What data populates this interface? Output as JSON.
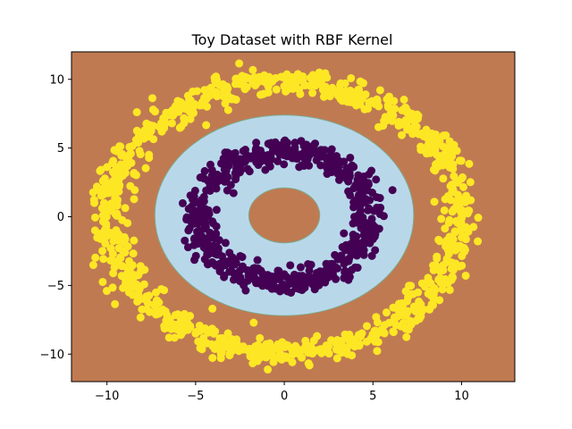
{
  "chart_data": {
    "type": "scatter",
    "title": "Toy Dataset with RBF Kernel",
    "xlabel": "",
    "ylabel": "",
    "xlim": [
      -12,
      13
    ],
    "ylim": [
      -12,
      12
    ],
    "x_ticks": [
      -10,
      -5,
      0,
      5,
      10
    ],
    "y_ticks": [
      -10,
      -5,
      0,
      5,
      10
    ],
    "x_tick_labels": [
      "−10",
      "−5",
      "0",
      "5",
      "10"
    ],
    "y_tick_labels": [
      "−10",
      "−5",
      "0",
      "5",
      "10"
    ],
    "grid": false,
    "colors": {
      "background_region": "#c07a52",
      "inner_class_region": "#b8d8ea",
      "outer_points": "#fde725",
      "inner_points": "#440154"
    },
    "decision_regions": [
      {
        "class": "inner",
        "color": "#b8d8ea",
        "center": [
          0.0,
          0.1
        ],
        "outer_radius": 7.3,
        "inner_radius": 2.0
      }
    ],
    "series": [
      {
        "class": "outer",
        "color": "#fde725",
        "center": [
          0,
          0
        ],
        "radius_mean": 9.9,
        "radius_spread": 0.9,
        "count": 1000
      },
      {
        "class": "inner",
        "color": "#440154",
        "center": [
          0,
          0
        ],
        "radius_mean": 4.8,
        "radius_spread": 0.85,
        "count": 650
      }
    ]
  }
}
